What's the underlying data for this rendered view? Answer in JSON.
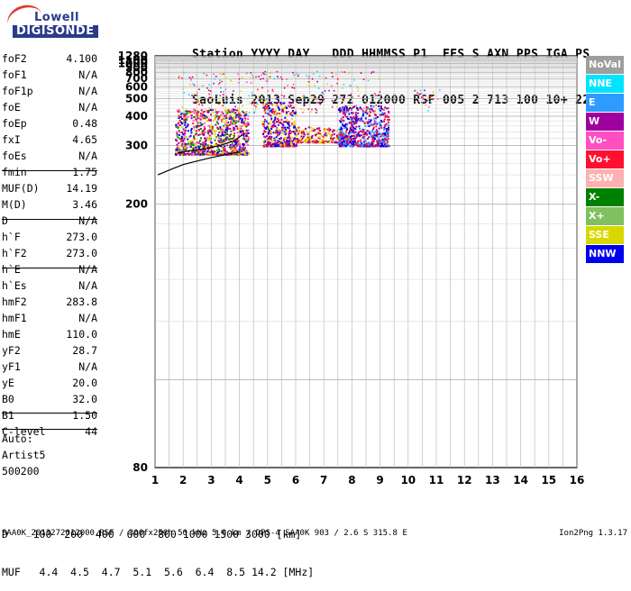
{
  "logo": {
    "line1": "Lowell",
    "line2": "DIGISONDE"
  },
  "header": {
    "line1": "Station YYYY DAY   DDD HHMMSS P1  FFS S AXN PPS IGA PS",
    "line2": "SaoLuis 2013 Sep29 272 012000 RSF 005 2 713 100 10+ 22"
  },
  "params": [
    {
      "name": "foF2",
      "value": "4.100"
    },
    {
      "name": "foF1",
      "value": "N/A"
    },
    {
      "name": "foF1p",
      "value": "N/A"
    },
    {
      "name": "foE",
      "value": "N/A"
    },
    {
      "name": "foEp",
      "value": "0.48"
    },
    {
      "name": "fxI",
      "value": "4.65"
    },
    {
      "name": "foEs",
      "value": "N/A"
    },
    {
      "name": "fmin",
      "value": "1.75"
    },
    {
      "name": "MUF(D)",
      "value": "14.19"
    },
    {
      "name": "M(D)",
      "value": "3.46"
    },
    {
      "name": "D",
      "value": "N/A"
    },
    {
      "name": "h`F",
      "value": "273.0"
    },
    {
      "name": "h`F2",
      "value": "273.0"
    },
    {
      "name": "h`E",
      "value": "N/A"
    },
    {
      "name": "h`Es",
      "value": "N/A"
    },
    {
      "name": "hmF2",
      "value": "283.8"
    },
    {
      "name": "hmF1",
      "value": "N/A"
    },
    {
      "name": "hmE",
      "value": "110.0"
    },
    {
      "name": "yF2",
      "value": "28.7"
    },
    {
      "name": "yF1",
      "value": "N/A"
    },
    {
      "name": "yE",
      "value": "20.0"
    },
    {
      "name": "B0",
      "value": "32.0"
    },
    {
      "name": "B1",
      "value": "1.50"
    },
    {
      "name": "C-level",
      "value": "44"
    }
  ],
  "auto": [
    "Auto:",
    "Artist5",
    "500200"
  ],
  "footer": {
    "d_line": "D    100  200  400  600  800 1000 1500 3000 [km]",
    "muf_line": "MUF   4.4  4.5  4.7  5.1  5.6  6.4  8.5 14.2 [MHz]",
    "file_line": "SAA0K_2013272012000.RSF / 300fx256h 50 kHz 5.0 km / DPS-4 SAA0K 903 / 2.6 S 315.8 E",
    "version": "Ion2Png 1.3.17"
  },
  "legend": [
    {
      "label": "NoVal",
      "bg": "#9e9e9e",
      "fg": "#ffffff"
    },
    {
      "label": "NNE",
      "bg": "#00e5ff",
      "fg": "#ffffff"
    },
    {
      "label": "E",
      "bg": "#2f9bff",
      "fg": "#ffffff"
    },
    {
      "label": "W",
      "bg": "#a000a0",
      "fg": "#ffffff"
    },
    {
      "label": "Vo-",
      "bg": "#ff4fc0",
      "fg": "#ffffff"
    },
    {
      "label": "Vo+",
      "bg": "#ff1030",
      "fg": "#ffffff"
    },
    {
      "label": "SSW",
      "bg": "#ffb0b0",
      "fg": "#ffffff"
    },
    {
      "label": "X-",
      "bg": "#008000",
      "fg": "#ffffff"
    },
    {
      "label": "X+",
      "bg": "#80c060",
      "fg": "#ffffff"
    },
    {
      "label": "SSE",
      "bg": "#d8d800",
      "fg": "#ffffff"
    },
    {
      "label": "NNW",
      "bg": "#0000ee",
      "fg": "#ffffff"
    }
  ],
  "chart_data": {
    "type": "scatter",
    "xlim": [
      1,
      16
    ],
    "x_ticks": [
      1,
      2,
      3,
      4,
      5,
      6,
      7,
      8,
      9,
      10,
      11,
      12,
      13,
      14,
      15,
      16
    ],
    "xlabel": "",
    "ylabel": "",
    "y_ticks": [
      80,
      200,
      300,
      400,
      500,
      600,
      700,
      800,
      900,
      1000,
      1100,
      1280
    ],
    "ylim": [
      80,
      1280
    ],
    "y_scale": "reciprocal",
    "grid": true,
    "echo_clusters": [
      {
        "x": [
          1.7,
          4.3
        ],
        "y": [
          280,
          440
        ],
        "colors": [
          "#ff1030",
          "#a000a0",
          "#0000ee",
          "#d8d800",
          "#ff4fc0",
          "#008000"
        ]
      },
      {
        "x": [
          4.8,
          6.0
        ],
        "y": [
          300,
          480
        ],
        "colors": [
          "#a000a0",
          "#ff1030",
          "#d8d800",
          "#0000ee"
        ]
      },
      {
        "x": [
          6.0,
          7.8
        ],
        "y": [
          310,
          360
        ],
        "colors": [
          "#ff1030",
          "#d8d800",
          "#a000a0"
        ]
      },
      {
        "x": [
          7.5,
          9.3
        ],
        "y": [
          300,
          460
        ],
        "colors": [
          "#0000ee",
          "#2f9bff",
          "#a000a0",
          "#ff1030"
        ]
      }
    ],
    "trace_X": {
      "x": [
        1.1,
        1.6,
        2.0,
        2.5,
        3.0,
        3.5,
        4.0
      ],
      "y": [
        240,
        250,
        258,
        265,
        272,
        278,
        285
      ]
    },
    "trace_O": {
      "x": [
        1.8,
        2.3,
        2.8,
        3.3,
        3.8,
        4.1
      ],
      "y": [
        282,
        288,
        292,
        300,
        312,
        330
      ]
    }
  }
}
